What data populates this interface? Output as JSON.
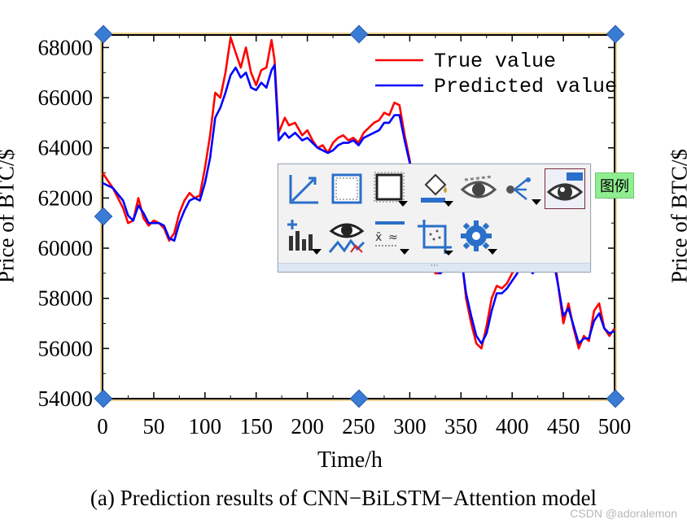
{
  "chart_data": {
    "type": "line",
    "title": "",
    "xlabel": "Time/h",
    "ylabel": "Price of BTC/$",
    "ylabel_right": "Price of BTC/$",
    "xlim": [
      0,
      500
    ],
    "ylim": [
      54000,
      68500
    ],
    "xticks": [
      "0",
      "50",
      "100",
      "150",
      "200",
      "250",
      "300",
      "350",
      "400",
      "450",
      "500"
    ],
    "yticks": [
      "54000",
      "56000",
      "58000",
      "60000",
      "62000",
      "64000",
      "66000",
      "68000"
    ],
    "legend_position": "top-right",
    "series": [
      {
        "name": "True value",
        "color": "#ff0000",
        "x": [
          0,
          10,
          20,
          25,
          30,
          35,
          40,
          45,
          50,
          55,
          60,
          65,
          70,
          75,
          80,
          85,
          90,
          95,
          100,
          105,
          110,
          115,
          120,
          125,
          130,
          135,
          140,
          145,
          150,
          155,
          160,
          165,
          168,
          172,
          178,
          182,
          188,
          195,
          200,
          205,
          210,
          215,
          220,
          225,
          230,
          235,
          240,
          245,
          250,
          255,
          260,
          265,
          270,
          275,
          280,
          285,
          290,
          295,
          300,
          305,
          310,
          315,
          320,
          325,
          330,
          335,
          340,
          345,
          350,
          355,
          360,
          365,
          370,
          375,
          380,
          385,
          390,
          395,
          400,
          405,
          410,
          415,
          420,
          425,
          430,
          435,
          440,
          445,
          450,
          455,
          460,
          465,
          470,
          475,
          480,
          485,
          490,
          495,
          500
        ],
        "y": [
          63000,
          62400,
          61600,
          61000,
          61100,
          62000,
          61200,
          60900,
          61100,
          61000,
          60800,
          60300,
          60600,
          61400,
          61900,
          62200,
          62000,
          62100,
          63200,
          64500,
          66200,
          66000,
          67000,
          68400,
          67800,
          67200,
          68000,
          67000,
          66500,
          67100,
          67200,
          68300,
          67500,
          64600,
          65200,
          64900,
          65000,
          64500,
          64700,
          64300,
          64000,
          64100,
          63800,
          64200,
          64400,
          64500,
          64300,
          64400,
          64200,
          64600,
          64800,
          65000,
          65100,
          65400,
          65300,
          65800,
          65700,
          64500,
          63500,
          62000,
          60500,
          59800,
          59400,
          59000,
          59000,
          59300,
          59500,
          59800,
          59900,
          58000,
          57000,
          56200,
          56000,
          56900,
          58000,
          58500,
          58400,
          58600,
          59000,
          59300,
          59800,
          59500,
          59000,
          59600,
          59200,
          59800,
          60000,
          58500,
          57000,
          57800,
          56800,
          56000,
          56500,
          56300,
          57500,
          57800,
          56800,
          56500,
          56800
        ]
      },
      {
        "name": "Predicted value",
        "color": "#0000ff",
        "x": [
          0,
          10,
          20,
          25,
          30,
          35,
          40,
          45,
          50,
          55,
          60,
          65,
          70,
          75,
          80,
          85,
          90,
          95,
          100,
          105,
          110,
          115,
          120,
          125,
          130,
          135,
          140,
          145,
          150,
          155,
          160,
          165,
          168,
          172,
          178,
          182,
          188,
          195,
          200,
          205,
          210,
          215,
          220,
          225,
          230,
          235,
          240,
          245,
          250,
          255,
          260,
          265,
          270,
          275,
          280,
          285,
          290,
          295,
          300,
          305,
          310,
          315,
          320,
          325,
          330,
          335,
          340,
          345,
          350,
          355,
          360,
          365,
          370,
          375,
          380,
          385,
          390,
          395,
          400,
          405,
          410,
          415,
          420,
          425,
          430,
          435,
          440,
          445,
          450,
          455,
          460,
          465,
          470,
          475,
          480,
          485,
          490,
          495,
          500
        ],
        "y": [
          62600,
          62400,
          61900,
          61300,
          61100,
          61700,
          61400,
          61000,
          61000,
          61000,
          60900,
          60400,
          60300,
          61000,
          61500,
          61900,
          62000,
          61900,
          62600,
          63600,
          65200,
          65600,
          66200,
          66900,
          67200,
          66800,
          67000,
          66400,
          66300,
          66600,
          66400,
          67100,
          67300,
          64300,
          64600,
          64400,
          64600,
          64300,
          64400,
          64200,
          64000,
          63900,
          63800,
          63900,
          64100,
          64200,
          64200,
          64300,
          64100,
          64400,
          64500,
          64600,
          64700,
          65000,
          65000,
          65300,
          65300,
          64300,
          63400,
          61800,
          60400,
          59700,
          59300,
          59100,
          59000,
          59200,
          59400,
          59600,
          59700,
          58200,
          57300,
          56500,
          56200,
          56600,
          57500,
          58200,
          58200,
          58400,
          58700,
          59000,
          59400,
          59300,
          59000,
          59300,
          59100,
          59500,
          59600,
          58500,
          57300,
          57600,
          56900,
          56200,
          56400,
          56400,
          57100,
          57400,
          56800,
          56600,
          56700
        ]
      }
    ]
  },
  "caption": "(a) Prediction results of CNN−BiLSTM−Attention model",
  "watermark": "CSDN @adoralemon",
  "toolbar": {
    "tooltip": "图例",
    "buttons": [
      {
        "icon": "axes-icon"
      },
      {
        "icon": "frame-icon"
      },
      {
        "icon": "layer-frame-icon"
      },
      {
        "icon": "fill-color-icon"
      },
      {
        "icon": "hide-eye-icon"
      },
      {
        "icon": "connect-icon"
      },
      {
        "icon": "legend-eye-icon"
      },
      {
        "icon": "add-plot-icon"
      },
      {
        "icon": "show-data-icon"
      },
      {
        "icon": "formula-icon"
      },
      {
        "icon": "crop-icon"
      },
      {
        "icon": "gear-icon"
      }
    ]
  }
}
